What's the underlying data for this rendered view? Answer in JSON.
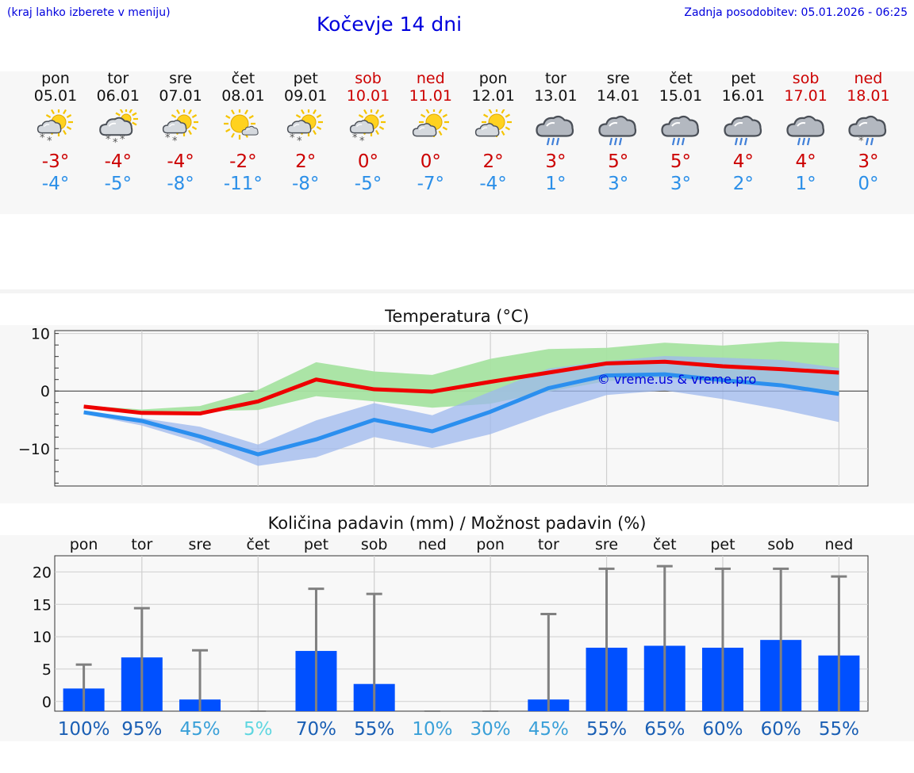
{
  "header": {
    "hint": "(kraj lahko izberete v meniju)",
    "title": "Kočevje 14 dni",
    "updated": "Zadnja posodobitev: 05.01.2026 - 06:25"
  },
  "days": [
    {
      "name": "pon",
      "date": "05.01",
      "weekend": false,
      "icon": "sun-cloud-snow-icon",
      "tmax": "-3°",
      "tmin": "-4°"
    },
    {
      "name": "tor",
      "date": "06.01",
      "weekend": false,
      "icon": "cloud-sun-snow-icon",
      "tmax": "-4°",
      "tmin": "-5°"
    },
    {
      "name": "sre",
      "date": "07.01",
      "weekend": false,
      "icon": "sun-cloud-snow-icon",
      "tmax": "-4°",
      "tmin": "-8°"
    },
    {
      "name": "čet",
      "date": "08.01",
      "weekend": false,
      "icon": "sun-small-cloud-icon",
      "tmax": "-2°",
      "tmin": "-11°"
    },
    {
      "name": "pet",
      "date": "09.01",
      "weekend": false,
      "icon": "sun-cloud-snow-icon",
      "tmax": "2°",
      "tmin": "-8°"
    },
    {
      "name": "sob",
      "date": "10.01",
      "weekend": true,
      "icon": "sun-cloud-snow-icon",
      "tmax": "0°",
      "tmin": "-5°"
    },
    {
      "name": "ned",
      "date": "11.01",
      "weekend": true,
      "icon": "sun-cloud-icon",
      "tmax": "0°",
      "tmin": "-7°"
    },
    {
      "name": "pon",
      "date": "12.01",
      "weekend": false,
      "icon": "sun-cloud-icon",
      "tmax": "2°",
      "tmin": "-4°"
    },
    {
      "name": "tor",
      "date": "13.01",
      "weekend": false,
      "icon": "cloud-rain-icon",
      "tmax": "3°",
      "tmin": "1°"
    },
    {
      "name": "sre",
      "date": "14.01",
      "weekend": false,
      "icon": "cloud-rain-icon",
      "tmax": "5°",
      "tmin": "3°"
    },
    {
      "name": "čet",
      "date": "15.01",
      "weekend": false,
      "icon": "cloud-rain-icon",
      "tmax": "5°",
      "tmin": "3°"
    },
    {
      "name": "pet",
      "date": "16.01",
      "weekend": false,
      "icon": "cloud-rain-icon",
      "tmax": "4°",
      "tmin": "2°"
    },
    {
      "name": "sob",
      "date": "17.01",
      "weekend": true,
      "icon": "cloud-rain-icon",
      "tmax": "4°",
      "tmin": "1°"
    },
    {
      "name": "ned",
      "date": "18.01",
      "weekend": true,
      "icon": "cloud-sleet-icon",
      "tmax": "3°",
      "tmin": "0°"
    }
  ],
  "colors": {
    "max_line": "#ee0000",
    "min_line": "#2b8fef",
    "max_band": "#a6e3a1",
    "min_band": "#9db8ee",
    "overlap_band": "#6fb8a6",
    "bar": "#0050ff",
    "whisker": "#808080"
  },
  "chart_data": [
    {
      "type": "line",
      "title": "Temperatura (°C)",
      "watermark": "© vreme.us & vreme.pro",
      "ylim": [
        -16.5,
        10.5
      ],
      "yticks": [
        10,
        0,
        -10
      ],
      "ytick_labels": [
        "10",
        "0",
        "−10"
      ],
      "x": [
        0,
        1,
        2,
        3,
        4,
        5,
        6,
        7,
        8,
        9,
        10,
        11,
        12,
        13
      ],
      "series": [
        {
          "name": "max",
          "values": [
            -2.7,
            -3.8,
            -3.9,
            -1.8,
            2.0,
            0.3,
            -0.1,
            1.6,
            3.2,
            4.8,
            5.1,
            4.3,
            3.8,
            3.2
          ]
        },
        {
          "name": "min",
          "values": [
            -3.7,
            -5.2,
            -7.9,
            -11.0,
            -8.4,
            -5.0,
            -7.0,
            -3.6,
            0.5,
            2.7,
            2.9,
            1.9,
            1.0,
            -0.5
          ]
        }
      ],
      "bands": [
        {
          "name": "max_range",
          "low": [
            -2.8,
            -3.5,
            -3.5,
            -3.3,
            -0.9,
            -1.8,
            -2.9,
            -2.2,
            -0.1,
            1.7,
            2.3,
            1.3,
            0.9,
            -0.2
          ],
          "high": [
            -2.5,
            -3.2,
            -2.6,
            0.2,
            5.0,
            3.4,
            2.8,
            5.6,
            7.3,
            7.5,
            8.4,
            7.9,
            8.6,
            8.3
          ]
        },
        {
          "name": "min_range",
          "low": [
            -4.0,
            -6.0,
            -9.0,
            -13.0,
            -11.5,
            -8.0,
            -9.9,
            -7.5,
            -3.9,
            -0.7,
            0.1,
            -1.4,
            -3.2,
            -5.4
          ],
          "high": [
            -3.6,
            -4.7,
            -6.2,
            -9.3,
            -5.1,
            -2.1,
            -4.2,
            -0.1,
            3.9,
            5.2,
            6.1,
            5.8,
            5.4,
            4.0
          ]
        }
      ]
    },
    {
      "type": "bar",
      "title": "Količina padavin (mm) / Možnost padavin (%)",
      "categories": [
        "pon",
        "tor",
        "sre",
        "čet",
        "pet",
        "sob",
        "ned",
        "pon",
        "tor",
        "sre",
        "čet",
        "pet",
        "sob",
        "ned"
      ],
      "ylim": [
        -1.5,
        22.5
      ],
      "yticks": [
        0,
        5,
        10,
        15,
        20
      ],
      "values": [
        2.0,
        6.8,
        0.3,
        0.0,
        7.8,
        2.7,
        0.0,
        0.0,
        0.3,
        8.3,
        8.6,
        8.3,
        9.5,
        7.1
      ],
      "max_values": [
        5.7,
        14.4,
        7.9,
        0.0,
        17.4,
        16.6,
        0.0,
        0.0,
        13.5,
        20.5,
        20.9,
        20.5,
        20.5,
        19.3
      ],
      "probability_labels": [
        "100%",
        "95%",
        "45%",
        "5%",
        "70%",
        "55%",
        "10%",
        "30%",
        "45%",
        "55%",
        "65%",
        "60%",
        "60%",
        "55%"
      ],
      "probability_colors": [
        "#1a5fb4",
        "#1a5fb4",
        "#3aa0d8",
        "#5ed6e0",
        "#1a5fb4",
        "#1a5fb4",
        "#3aa0d8",
        "#3aa0d8",
        "#3aa0d8",
        "#1a5fb4",
        "#1a5fb4",
        "#1a5fb4",
        "#1a5fb4",
        "#1a5fb4"
      ]
    }
  ]
}
